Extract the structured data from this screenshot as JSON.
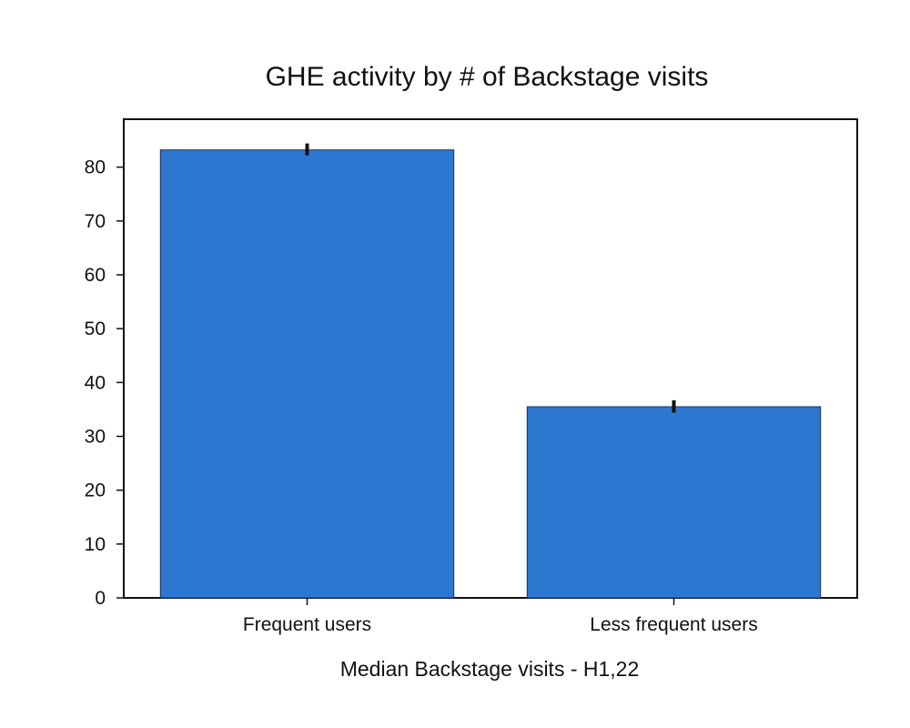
{
  "chart_data": {
    "type": "bar",
    "title": "GHE activity by # of Backstage visits",
    "xlabel": "Median Backstage visits - H1,22",
    "ylabel": "",
    "categories": [
      "Frequent users",
      "Less frequent users"
    ],
    "values": [
      83.2,
      35.5
    ],
    "error": [
      [
        82.2,
        84.4
      ],
      [
        34.4,
        36.7
      ]
    ],
    "ylim": [
      0,
      88.9
    ],
    "yticks": [
      "0",
      "10",
      "20",
      "30",
      "40",
      "50",
      "60",
      "70",
      "80"
    ],
    "bar_color": "#2e77d0",
    "bar_edge_color": "#1f3050",
    "error_color": "#111111",
    "grid": false,
    "legend": "none"
  }
}
